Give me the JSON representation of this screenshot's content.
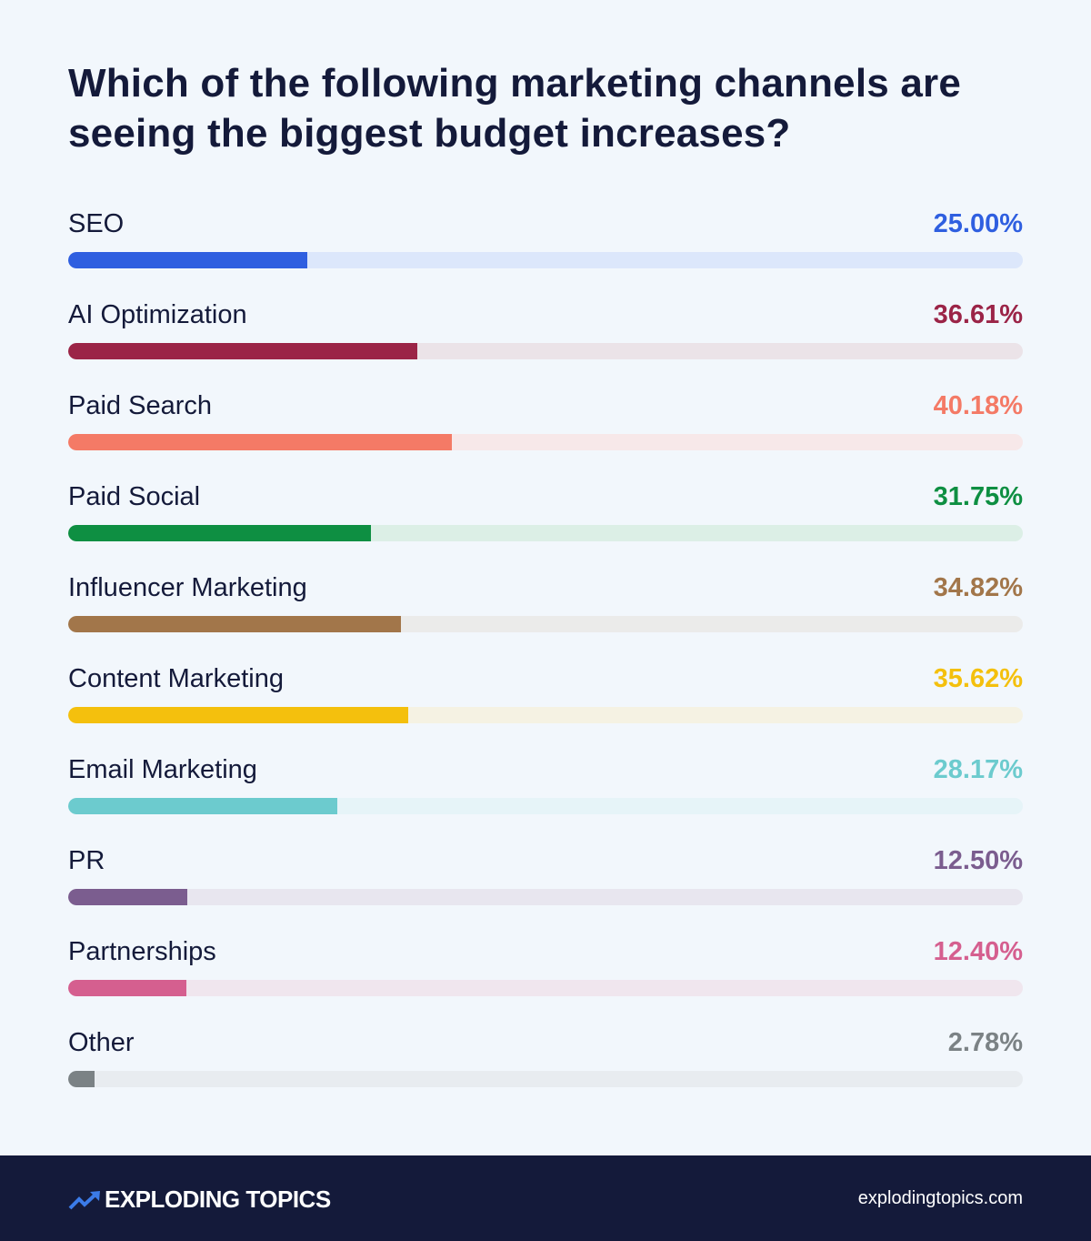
{
  "chart_data": {
    "type": "bar",
    "orientation": "horizontal",
    "title": "Which of the following marketing channels are seeing the biggest budget increases?",
    "xlim": [
      0,
      100
    ],
    "grid": false,
    "categories": [
      "SEO",
      "AI Optimization",
      "Paid Search",
      "Paid Social",
      "Influencer Marketing",
      "Content Marketing",
      "Email Marketing",
      "PR",
      "Partnerships",
      "Other"
    ],
    "values": [
      25.0,
      36.61,
      40.18,
      31.75,
      34.82,
      35.62,
      28.17,
      12.5,
      12.4,
      2.78
    ],
    "labels": [
      "25.00%",
      "36.61%",
      "40.18%",
      "31.75%",
      "34.82%",
      "35.62%",
      "28.17%",
      "12.50%",
      "12.40%",
      "2.78%"
    ],
    "colors": [
      "#2f5fe0",
      "#9b2447",
      "#f47a66",
      "#0e8f42",
      "#a2764a",
      "#f4c00d",
      "#6ccbce",
      "#7b5d8f",
      "#d55f8f",
      "#7b8285"
    ],
    "track_colors": [
      "#dce7fb",
      "#ebe3e8",
      "#f7e8e9",
      "#dcefe6",
      "#ebebea",
      "#f5f2e3",
      "#e6f4f8",
      "#e8e6ef",
      "#f0e6ee",
      "#e8ecf0"
    ]
  },
  "footer": {
    "brand": "EXPLODING TOPICS",
    "website": "explodingtopics.com",
    "brand_color": "#3b7be8",
    "background": "#141a3a"
  }
}
